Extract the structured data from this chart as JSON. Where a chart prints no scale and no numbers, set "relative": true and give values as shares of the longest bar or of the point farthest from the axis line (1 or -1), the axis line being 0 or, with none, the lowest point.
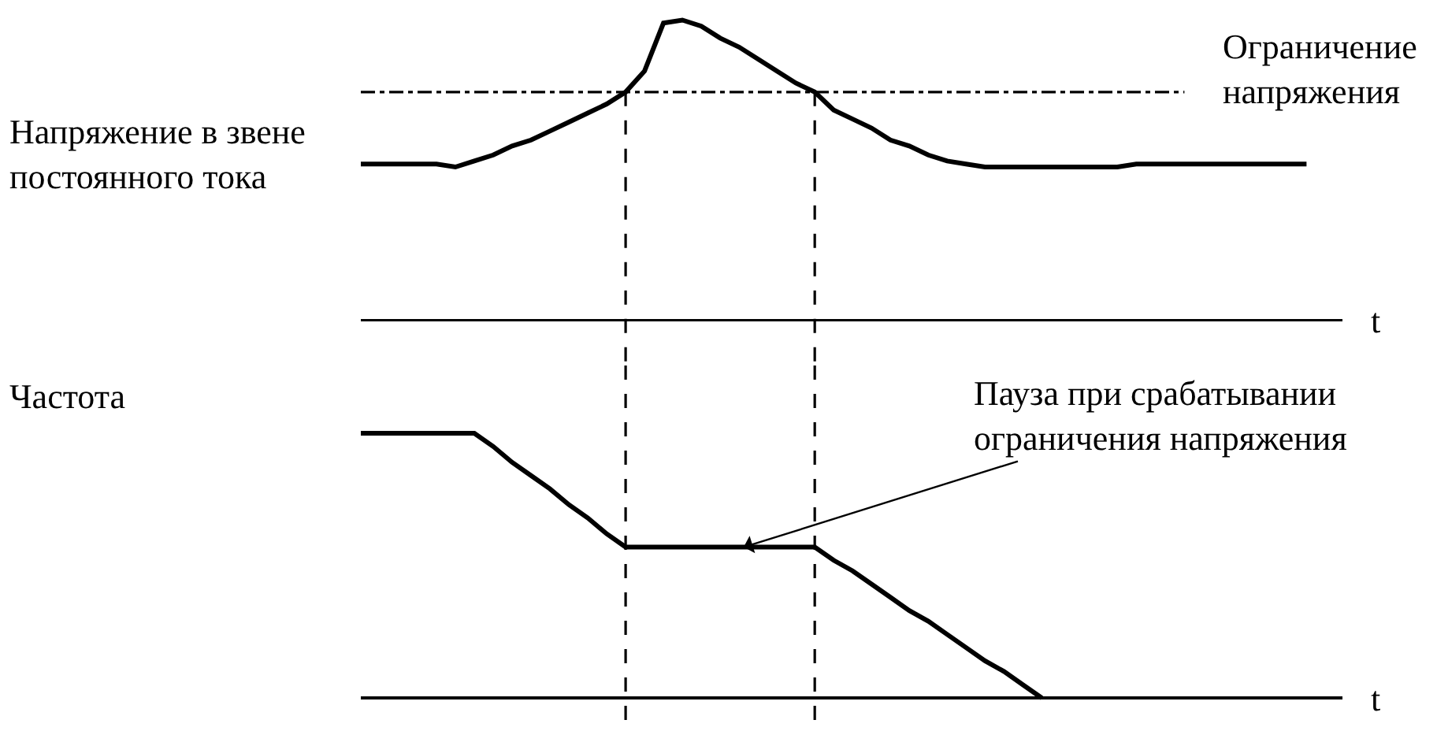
{
  "chart_data": [
    {
      "type": "line",
      "relative": true,
      "ylabel": "Напряжение в звене\nпостоянного тока",
      "xlabel": "t",
      "categories": [
        null,
        null,
        null,
        null,
        null,
        null,
        null,
        null,
        null,
        null,
        null,
        null,
        null,
        null,
        null,
        null,
        null,
        null,
        null,
        null,
        null,
        null,
        null,
        null,
        null,
        null,
        null,
        null,
        null,
        null,
        null,
        null,
        null,
        null,
        null,
        null,
        null,
        null,
        null,
        null,
        null,
        null,
        null,
        null,
        null,
        null,
        null,
        null,
        null,
        null,
        null
      ],
      "series": [
        {
          "color": "#000000",
          "values": [
            0.52,
            0.52,
            0.52,
            0.52,
            0.52,
            0.51,
            0.53,
            0.55,
            0.58,
            0.6,
            0.63,
            0.66,
            0.69,
            0.72,
            0.76,
            0.83,
            0.99,
            1,
            0.98,
            0.94,
            0.91,
            0.87,
            0.83,
            0.79,
            0.76,
            0.7,
            0.67,
            0.64,
            0.6,
            0.58,
            0.55,
            0.53,
            0.52,
            0.51,
            0.51,
            0.51,
            0.51,
            0.51,
            0.51,
            0.51,
            0.51,
            0.52,
            0.52,
            0.52,
            0.52,
            0.52,
            0.52,
            0.52,
            0.52,
            0.52,
            0.52
          ]
        }
      ],
      "ref_lines": [
        {
          "axis": "y",
          "value": 0.76,
          "label": "Ограничение\nнапряжения",
          "color": "#000000",
          "line_style": "dashdot"
        }
      ]
    },
    {
      "type": "line",
      "relative": true,
      "ylabel": "Частота",
      "xlabel": "t",
      "categories": [
        null,
        null,
        null,
        null,
        null,
        null,
        null,
        null,
        null,
        null,
        null,
        null,
        null,
        null,
        null,
        null,
        null,
        null,
        null,
        null,
        null,
        null,
        null,
        null,
        null,
        null,
        null,
        null,
        null,
        null,
        null,
        null,
        null,
        null,
        null,
        null,
        null,
        null,
        null,
        null,
        null,
        null,
        null,
        null,
        null,
        null,
        null,
        null,
        null,
        null,
        null
      ],
      "series": [
        {
          "color": "#000000",
          "values": [
            1,
            1,
            1,
            1,
            1,
            1,
            1,
            0.95,
            0.89,
            0.84,
            0.79,
            0.73,
            0.68,
            0.62,
            0.57,
            0.57,
            0.57,
            0.57,
            0.57,
            0.57,
            0.57,
            0.57,
            0.57,
            0.57,
            0.57,
            0.52,
            0.48,
            0.43,
            0.38,
            0.33,
            0.29,
            0.24,
            0.19,
            0.14,
            0.1,
            0.05,
            0,
            null,
            null,
            null,
            null,
            null,
            null,
            null,
            null,
            null,
            null,
            null,
            null,
            null,
            null
          ]
        }
      ],
      "annotations": [
        "Пауза при срабатывании\nограничения напряжения"
      ]
    }
  ]
}
